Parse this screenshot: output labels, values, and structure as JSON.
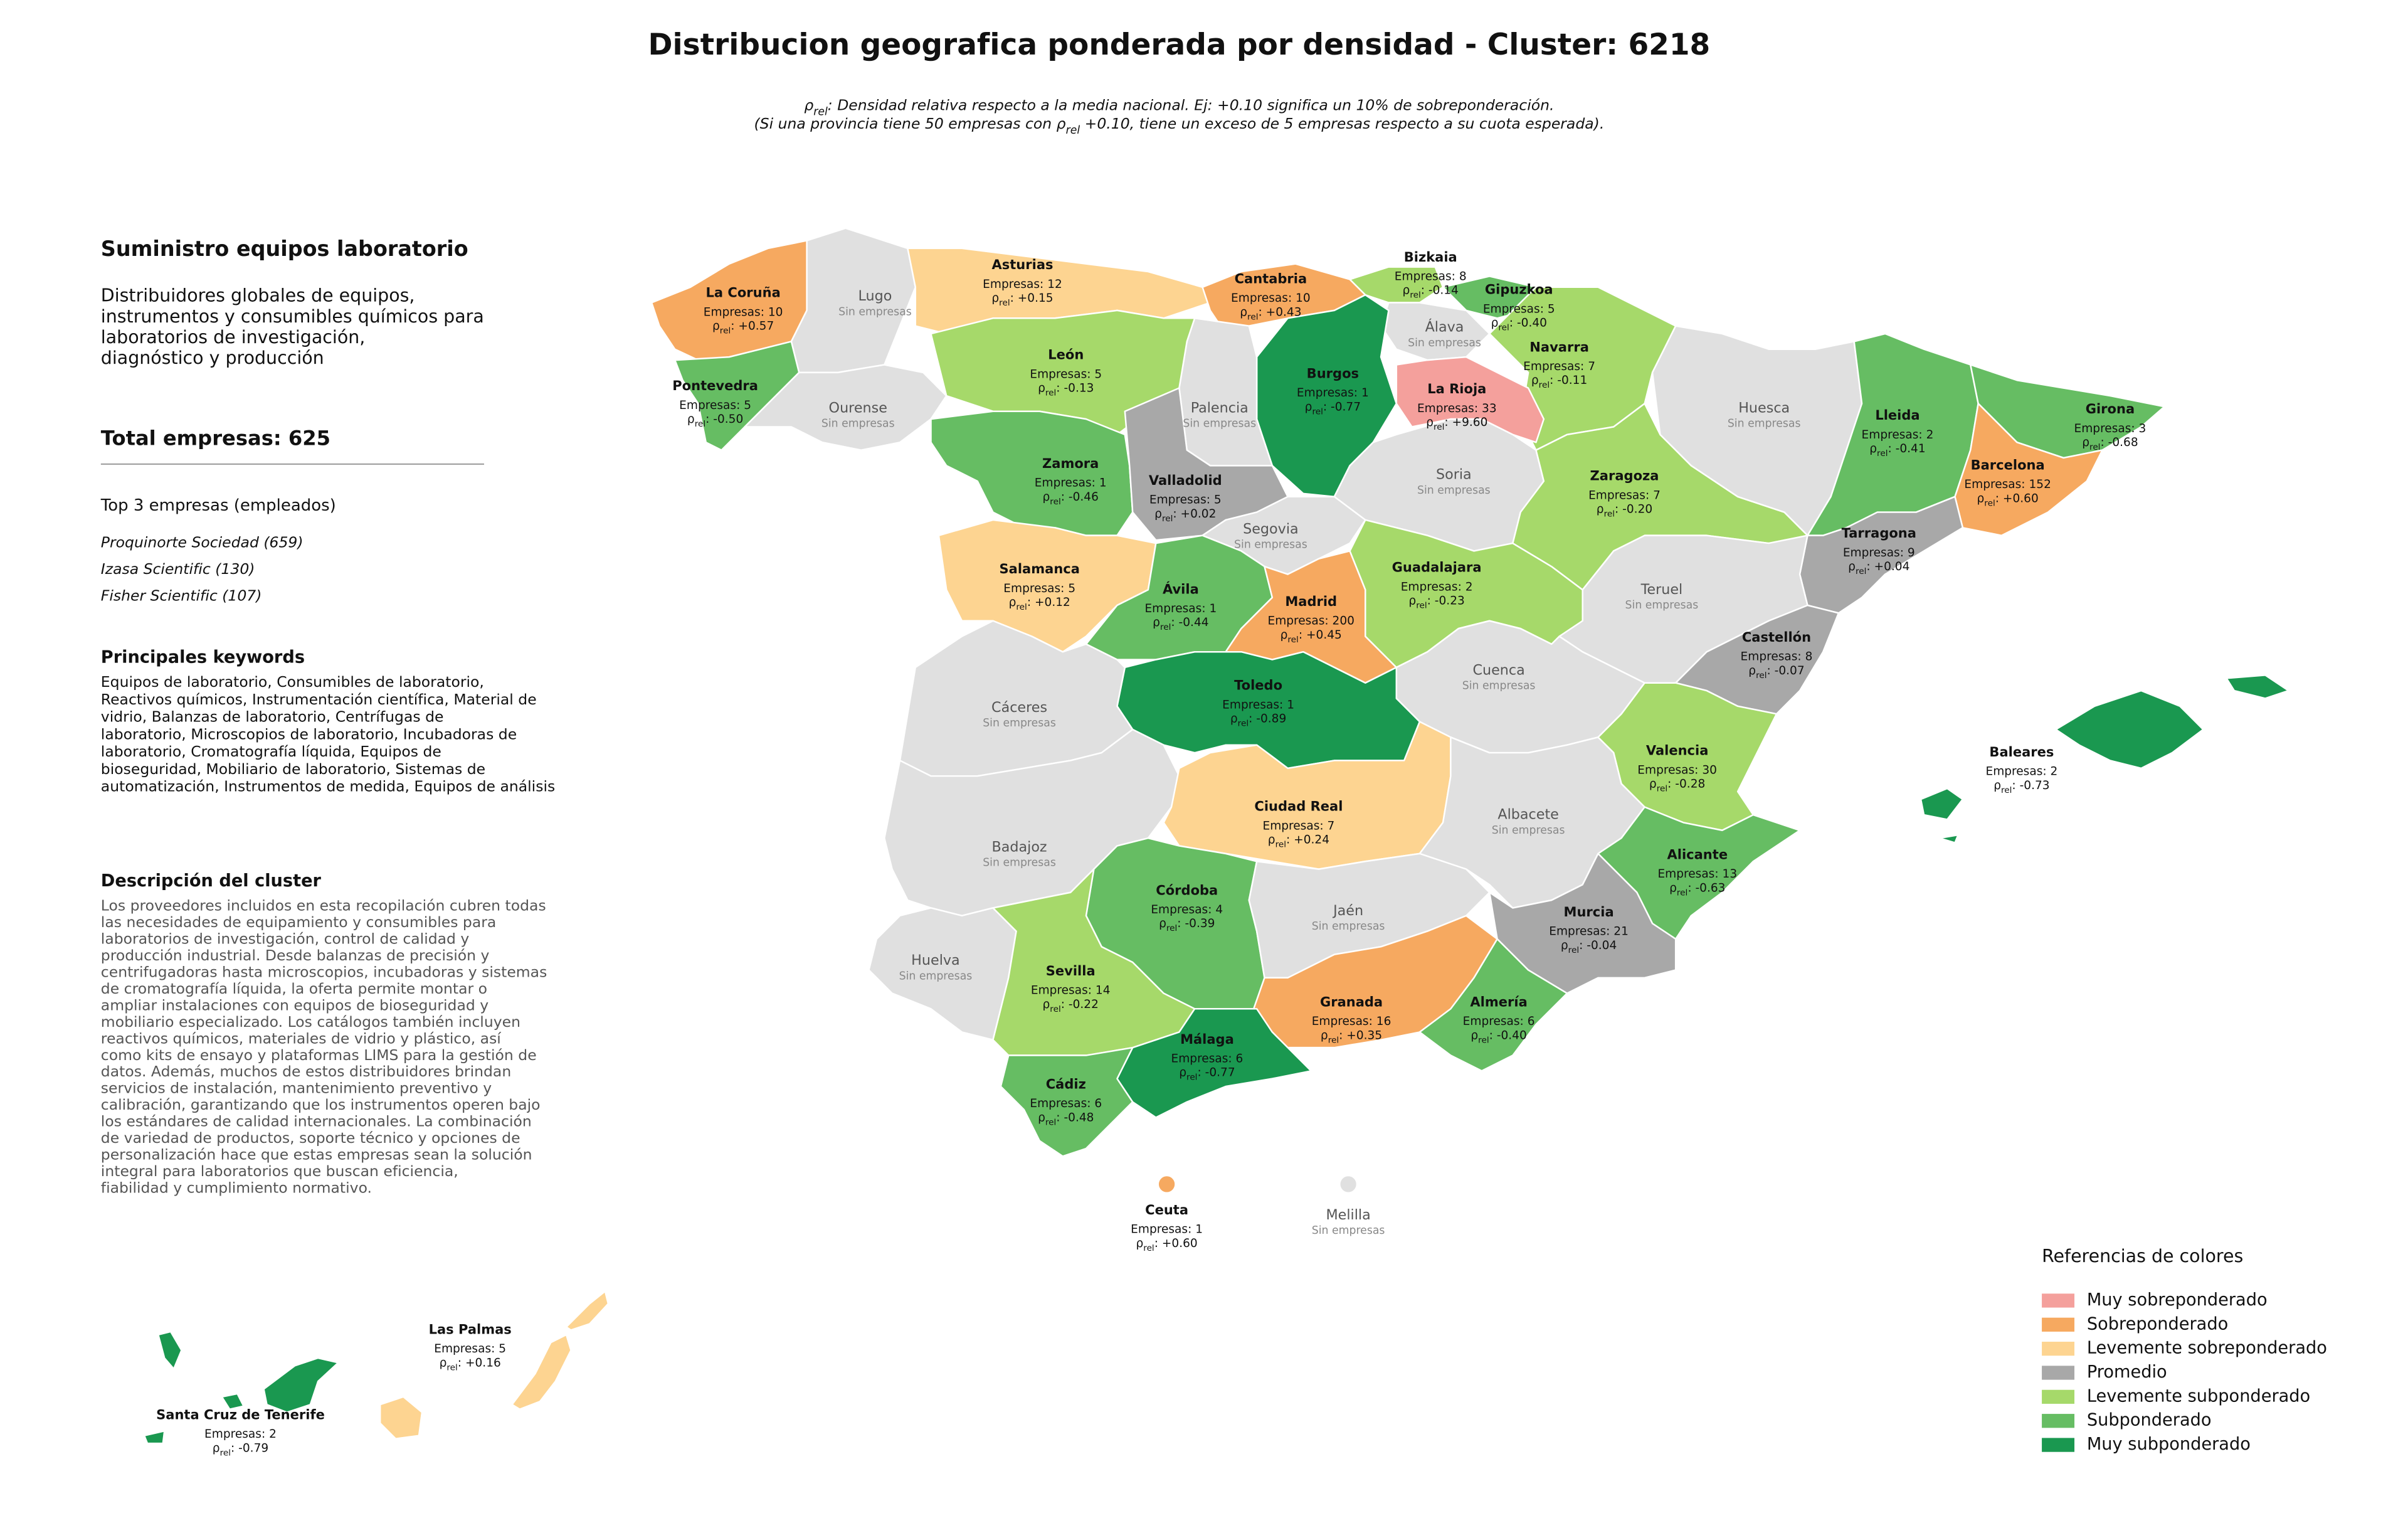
{
  "title": "Distribucion geografica ponderada por densidad - Cluster: 6218",
  "labels": {
    "rho_symbol": "ρ",
    "rho_sub": "rel",
    "rho_sep": ":",
    "empresas": "Empresas:",
    "sin_empresas": "Sin empresas"
  },
  "note": [
    {
      "after": ": Densidad relativa respecto a la media nacional. Ej: +0.10 significa un 10% de sobreponderación."
    },
    {
      "before": "(Si una provincia tiene 50 empresas con",
      "after": "+0.10, tiene un exceso de 5 empresas respecto a su cuota esperada)."
    }
  ],
  "sidebar": {
    "heading": "Suministro equipos laboratorio",
    "summary": [
      "Distribuidores globales de equipos,",
      "instrumentos y consumibles químicos para",
      "laboratorios de investigación,",
      "diagnóstico y producción"
    ],
    "total_label": "Total empresas:",
    "total": 625,
    "top_heading": "Top 3 empresas (empleados)",
    "top": [
      "Proquinorte Sociedad (659)",
      "Izasa Scientific (130)",
      "Fisher Scientific (107)"
    ],
    "keywords_heading": "Principales keywords",
    "keywords": [
      "Equipos de laboratorio, Consumibles de laboratorio,",
      "Reactivos químicos, Instrumentación científica, Material de",
      "vidrio, Balanzas de laboratorio, Centrífugas de",
      "laboratorio, Microscopios de laboratorio, Incubadoras de",
      "laboratorio, Cromatografía líquida, Equipos de",
      "bioseguridad, Mobiliario de laboratorio, Sistemas de",
      "automatización, Instrumentos de medida, Equipos de análisis"
    ],
    "description_heading": "Descripción del cluster",
    "description": [
      "Los proveedores incluidos en esta recopilación cubren todas",
      "las necesidades de equipamiento y consumibles para",
      "laboratorios de investigación, control de calidad y",
      "producción industrial. Desde balanzas de precisión y",
      "centrifugadoras hasta microscopios, incubadoras y sistemas",
      "de cromatografía líquida, la oferta permite montar o",
      "ampliar instalaciones con equipos de bioseguridad y",
      "mobiliario especializado. Los catálogos también incluyen",
      "reactivos químicos, materiales de vidrio y plástico, así",
      "como kits de ensayo y plataformas LIMS para la gestión de",
      "datos. Además, muchos de estos distribuidores brindan",
      "servicios de instalación, mantenimiento preventivo y",
      "calibración, garantizando que los instrumentos operen bajo",
      "los estándares de calidad internacionales. La combinación",
      "de variedad de productos, soporte técnico y opciones de",
      "personalización hace que estas empresas sean la solución",
      "integral para laboratorios que buscan eficiencia,",
      "fiabilidad y cumplimiento normativo."
    ]
  },
  "legend": {
    "title": "Referencias de colores",
    "items": [
      {
        "label": "Muy sobreponderado",
        "color": "#f4a09c"
      },
      {
        "label": "Sobreponderado",
        "color": "#f6a960"
      },
      {
        "label": "Levemente sobreponderado",
        "color": "#fdd491"
      },
      {
        "label": "Promedio",
        "color": "#a8a8a8"
      },
      {
        "label": "Levemente subponderado",
        "color": "#a6d96a"
      },
      {
        "label": "Subponderado",
        "color": "#66bd63"
      },
      {
        "label": "Muy subponderado",
        "color": "#1a9850"
      }
    ]
  },
  "provinces": [
    {
      "name": "La Coruña",
      "empresas": 10,
      "rho": 0.57,
      "rho_label": "+0.57",
      "color": "#f6a960"
    },
    {
      "name": "Lugo",
      "color": "#e0e0e0"
    },
    {
      "name": "Pontevedra",
      "empresas": 5,
      "rho": -0.5,
      "rho_label": "-0.50",
      "color": "#66bd63"
    },
    {
      "name": "Ourense",
      "color": "#e0e0e0"
    },
    {
      "name": "Asturias",
      "empresas": 12,
      "rho": 0.15,
      "rho_label": "+0.15",
      "color": "#fdd491"
    },
    {
      "name": "Cantabria",
      "empresas": 10,
      "rho": 0.43,
      "rho_label": "+0.43",
      "color": "#f6a960"
    },
    {
      "name": "Bizkaia",
      "empresas": 8,
      "rho": -0.14,
      "rho_label": "-0.14",
      "color": "#a6d96a"
    },
    {
      "name": "Gipuzkoa",
      "empresas": 5,
      "rho": -0.4,
      "rho_label": "-0.40",
      "color": "#66bd63"
    },
    {
      "name": "Álava",
      "color": "#e0e0e0"
    },
    {
      "name": "Navarra",
      "empresas": 7,
      "rho": -0.11,
      "rho_label": "-0.11",
      "color": "#a6d96a"
    },
    {
      "name": "La Rioja",
      "empresas": 33,
      "rho": 9.6,
      "rho_label": "+9.60",
      "color": "#f4a09c"
    },
    {
      "name": "Burgos",
      "empresas": 1,
      "rho": -0.77,
      "rho_label": "-0.77",
      "color": "#1a9850"
    },
    {
      "name": "Palencia",
      "color": "#e0e0e0"
    },
    {
      "name": "León",
      "empresas": 5,
      "rho": -0.13,
      "rho_label": "-0.13",
      "color": "#a6d96a"
    },
    {
      "name": "Zamora",
      "empresas": 1,
      "rho": -0.46,
      "rho_label": "-0.46",
      "color": "#66bd63"
    },
    {
      "name": "Valladolid",
      "empresas": 5,
      "rho": 0.02,
      "rho_label": "+0.02",
      "color": "#a8a8a8"
    },
    {
      "name": "Soria",
      "color": "#e0e0e0"
    },
    {
      "name": "Segovia",
      "color": "#e0e0e0"
    },
    {
      "name": "Salamanca",
      "empresas": 5,
      "rho": 0.12,
      "rho_label": "+0.12",
      "color": "#fdd491"
    },
    {
      "name": "Ávila",
      "empresas": 1,
      "rho": -0.44,
      "rho_label": "-0.44",
      "color": "#66bd63"
    },
    {
      "name": "Madrid",
      "empresas": 200,
      "rho": 0.45,
      "rho_label": "+0.45",
      "color": "#f6a960"
    },
    {
      "name": "Guadalajara",
      "empresas": 2,
      "rho": -0.23,
      "rho_label": "-0.23",
      "color": "#a6d96a"
    },
    {
      "name": "Zaragoza",
      "empresas": 7,
      "rho": -0.2,
      "rho_label": "-0.20",
      "color": "#a6d96a"
    },
    {
      "name": "Huesca",
      "color": "#e0e0e0"
    },
    {
      "name": "Lleida",
      "empresas": 2,
      "rho": -0.41,
      "rho_label": "-0.41",
      "color": "#66bd63"
    },
    {
      "name": "Girona",
      "empresas": 3,
      "rho": -0.68,
      "rho_label": "-0.68",
      "color": "#66bd63"
    },
    {
      "name": "Barcelona",
      "empresas": 152,
      "rho": 0.6,
      "rho_label": "+0.60",
      "color": "#f6a960"
    },
    {
      "name": "Tarragona",
      "empresas": 9,
      "rho": 0.04,
      "rho_label": "+0.04",
      "color": "#a8a8a8"
    },
    {
      "name": "Teruel",
      "color": "#e0e0e0"
    },
    {
      "name": "Castellón",
      "empresas": 8,
      "rho": -0.07,
      "rho_label": "-0.07",
      "color": "#a8a8a8"
    },
    {
      "name": "Cuenca",
      "color": "#e0e0e0"
    },
    {
      "name": "Valencia",
      "empresas": 30,
      "rho": -0.28,
      "rho_label": "-0.28",
      "color": "#a6d96a"
    },
    {
      "name": "Toledo",
      "empresas": 1,
      "rho": -0.89,
      "rho_label": "-0.89",
      "color": "#1a9850"
    },
    {
      "name": "Cáceres",
      "color": "#e0e0e0"
    },
    {
      "name": "Badajoz",
      "color": "#e0e0e0"
    },
    {
      "name": "Ciudad Real",
      "empresas": 7,
      "rho": 0.24,
      "rho_label": "+0.24",
      "color": "#fdd491"
    },
    {
      "name": "Albacete",
      "color": "#e0e0e0"
    },
    {
      "name": "Alicante",
      "empresas": 13,
      "rho": -0.63,
      "rho_label": "-0.63",
      "color": "#66bd63"
    },
    {
      "name": "Murcia",
      "empresas": 21,
      "rho": -0.04,
      "rho_label": "-0.04",
      "color": "#a8a8a8"
    },
    {
      "name": "Córdoba",
      "empresas": 4,
      "rho": -0.39,
      "rho_label": "-0.39",
      "color": "#66bd63"
    },
    {
      "name": "Jaén",
      "color": "#e0e0e0"
    },
    {
      "name": "Huelva",
      "color": "#e0e0e0"
    },
    {
      "name": "Sevilla",
      "empresas": 14,
      "rho": -0.22,
      "rho_label": "-0.22",
      "color": "#a6d96a"
    },
    {
      "name": "Granada",
      "empresas": 16,
      "rho": 0.35,
      "rho_label": "+0.35",
      "color": "#f6a960"
    },
    {
      "name": "Almería",
      "empresas": 6,
      "rho": -0.4,
      "rho_label": "-0.40",
      "color": "#66bd63"
    },
    {
      "name": "Málaga",
      "empresas": 6,
      "rho": -0.77,
      "rho_label": "-0.77",
      "color": "#1a9850"
    },
    {
      "name": "Cádiz",
      "empresas": 6,
      "rho": -0.48,
      "rho_label": "-0.48",
      "color": "#66bd63"
    },
    {
      "name": "Baleares",
      "empresas": 2,
      "rho": -0.73,
      "rho_label": "-0.73",
      "color": "#1a9850"
    },
    {
      "name": "Ceuta",
      "empresas": 1,
      "rho": 0.6,
      "rho_label": "+0.60",
      "color": "#f6a960"
    },
    {
      "name": "Melilla",
      "color": "#e0e0e0"
    },
    {
      "name": "Las Palmas",
      "empresas": 5,
      "rho": 0.16,
      "rho_label": "+0.16",
      "color": "#fdd491"
    },
    {
      "name": "Santa Cruz de Tenerife",
      "empresas": 2,
      "rho": -0.79,
      "rho_label": "-0.79",
      "color": "#1a9850"
    }
  ]
}
